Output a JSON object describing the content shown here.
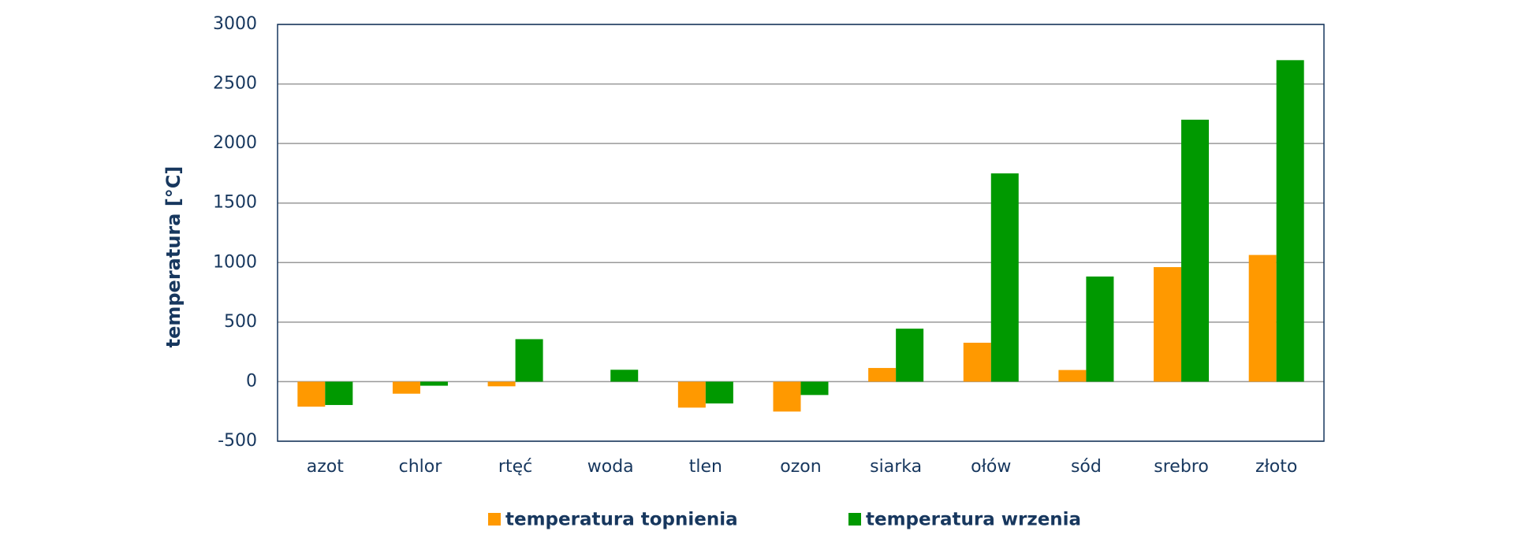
{
  "chart_data": {
    "type": "bar",
    "categories": [
      "azot",
      "chlor",
      "rtęć",
      "woda",
      "tlen",
      "ozon",
      "siarka",
      "ołów",
      "sód",
      "srebro",
      "złoto"
    ],
    "y_label": "temperatura [°C]",
    "series": [
      {
        "name": "temperatura topnienia",
        "color": "#ff9900",
        "values": [
          -210,
          -101,
          -39,
          0,
          -218,
          -251,
          115,
          327,
          98,
          962,
          1064
        ]
      },
      {
        "name": "temperatura wrzenia",
        "color": "#009900",
        "values": [
          -196,
          -34,
          357,
          100,
          -183,
          -112,
          445,
          1749,
          883,
          2200,
          2700
        ]
      }
    ],
    "ylim": [
      -500,
      3000
    ],
    "yticks": [
      -500,
      0,
      500,
      1000,
      1500,
      2000,
      2500,
      3000
    ],
    "grid": true,
    "legend": "bottom"
  }
}
